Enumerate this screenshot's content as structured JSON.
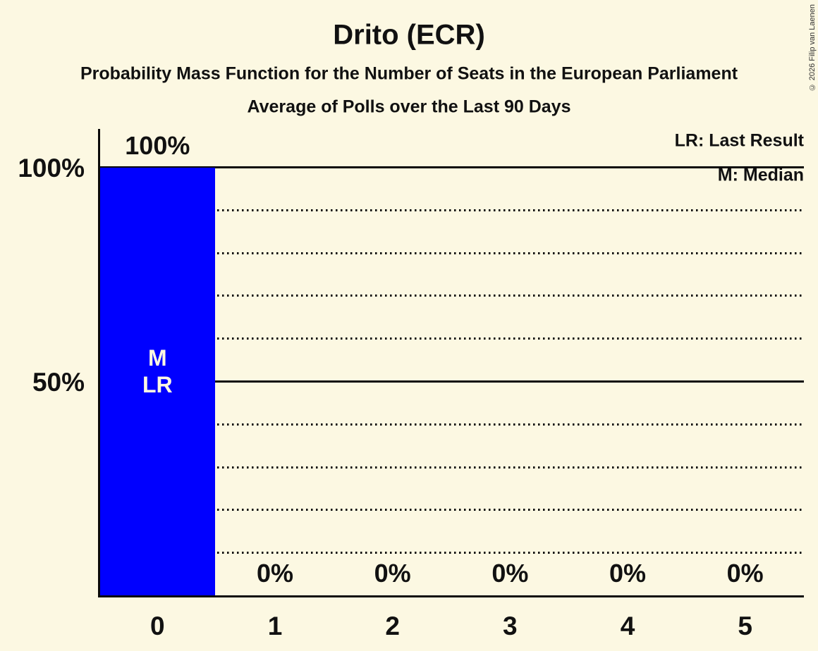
{
  "chart_data": {
    "type": "bar",
    "title": "Drito (ECR)",
    "subtitles": [
      "Probability Mass Function for the Number of Seats in the European Parliament",
      "Average of Polls over the Last 90 Days"
    ],
    "categories": [
      "0",
      "1",
      "2",
      "3",
      "4",
      "5"
    ],
    "values": [
      100,
      0,
      0,
      0,
      0,
      0
    ],
    "value_labels": [
      "100%",
      "0%",
      "0%",
      "0%",
      "0%",
      "0%"
    ],
    "bar_annotations": [
      [
        "M",
        "LR"
      ],
      [],
      [],
      [],
      [],
      []
    ],
    "xlabel": "",
    "ylabel": "",
    "ylim": [
      0,
      100
    ],
    "yticks": [
      {
        "value": 100,
        "label": "100%"
      },
      {
        "value": 50,
        "label": "50%"
      }
    ],
    "gridlines": {
      "solid": [
        100,
        50
      ],
      "dotted": [
        90,
        80,
        70,
        60,
        40,
        30,
        20,
        10
      ]
    },
    "legend": [
      {
        "label": "LR: Last Result"
      },
      {
        "label": "M: Median"
      }
    ],
    "legend_position": "top-right",
    "colors": {
      "background": "#FCF8E2",
      "bar": "#0000FF",
      "bar_text": "#FCF8E2",
      "text": "#111111",
      "axis": "#0A0A0A",
      "copyright": "#333333"
    },
    "copyright": "© 2026 Filip van Laenen"
  }
}
